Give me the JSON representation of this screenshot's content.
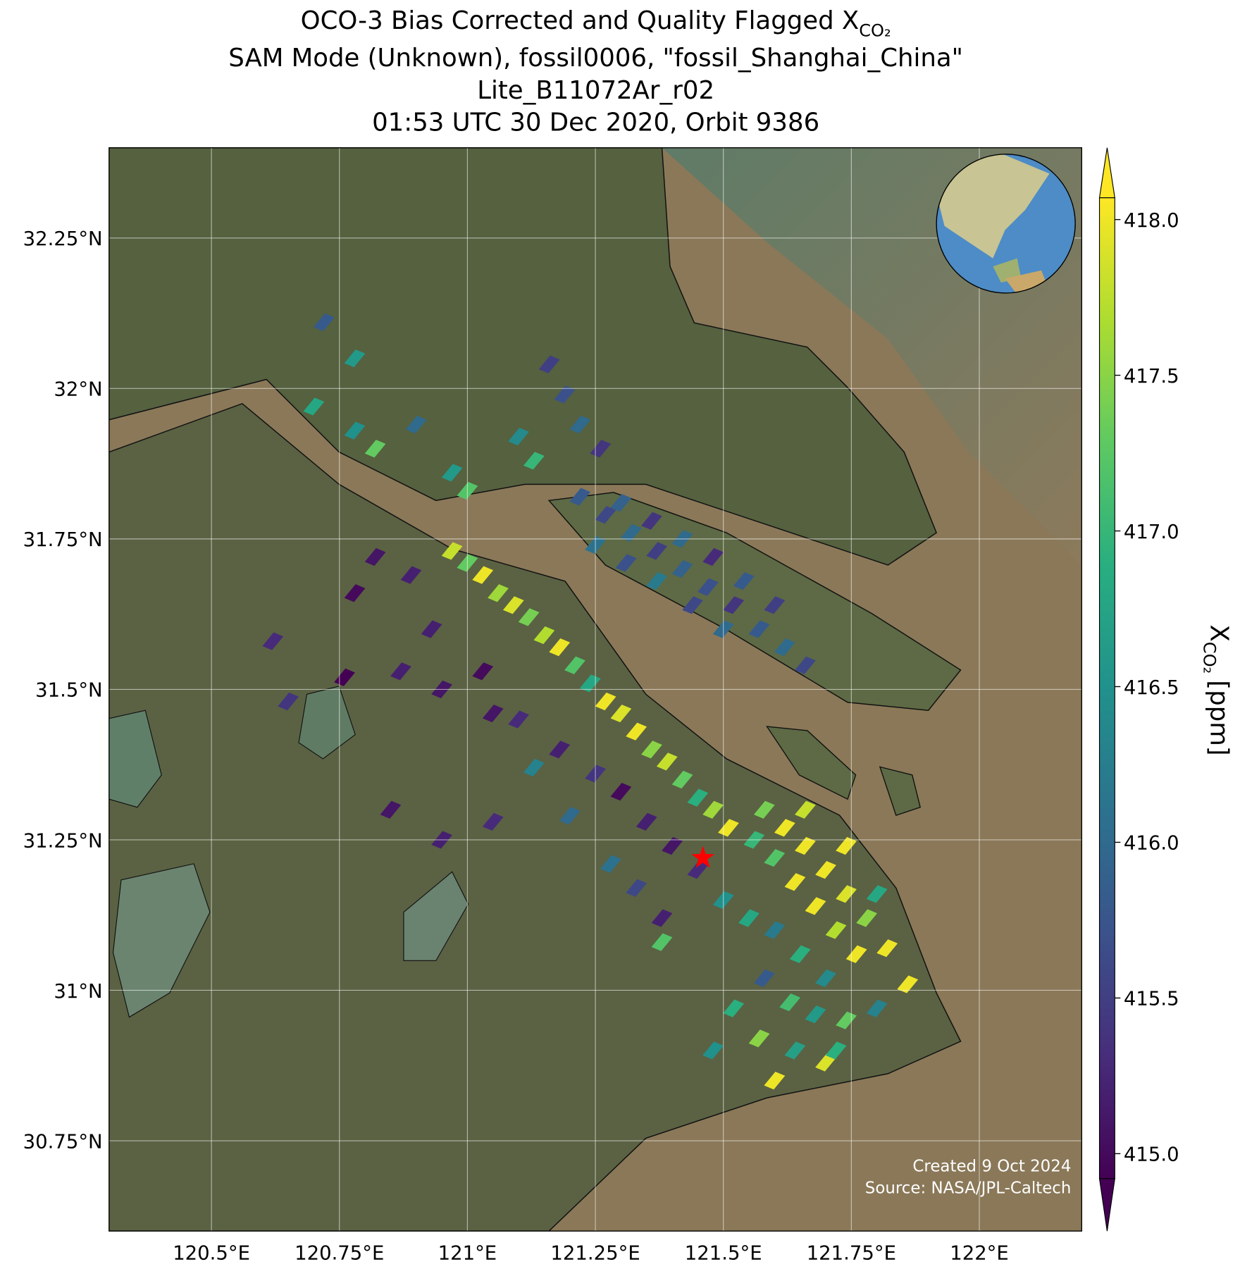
{
  "chart_data": {
    "type": "map",
    "title_line1": "OCO-3 Bias Corrected and Quality Flagged X",
    "title_sub": "CO₂",
    "title_line2": "SAM Mode (Unknown), fossil0006, \"fossil_Shanghai_China\"",
    "title_line3": "Lite_B11072Ar_r02",
    "title_line4": "01:53 UTC 30 Dec 2020, Orbit 9386",
    "xlim": [
      120.3,
      122.2
    ],
    "ylim": [
      30.6,
      32.4
    ],
    "xticks": [
      {
        "value": 120.5,
        "label": "120.5°E"
      },
      {
        "value": 120.75,
        "label": "120.75°E"
      },
      {
        "value": 121,
        "label": "121°E"
      },
      {
        "value": 121.25,
        "label": "121.25°E"
      },
      {
        "value": 121.5,
        "label": "121.5°E"
      },
      {
        "value": 121.75,
        "label": "121.75°E"
      },
      {
        "value": 122,
        "label": "122°E"
      }
    ],
    "yticks": [
      {
        "value": 30.75,
        "label": "30.75°N"
      },
      {
        "value": 31,
        "label": "31°N"
      },
      {
        "value": 31.25,
        "label": "31.25°N"
      },
      {
        "value": 31.5,
        "label": "31.5°N"
      },
      {
        "value": 31.75,
        "label": "31.75°N"
      },
      {
        "value": 32,
        "label": "32°N"
      },
      {
        "value": 32.25,
        "label": "32.25°N"
      }
    ],
    "grid": true,
    "colormap": "viridis",
    "clim": [
      414.92,
      418.07
    ],
    "cticks": [
      {
        "value": 415,
        "label": "415.0"
      },
      {
        "value": 415.5,
        "label": "415.5"
      },
      {
        "value": 416,
        "label": "416.0"
      },
      {
        "value": 416.5,
        "label": "416.5"
      },
      {
        "value": 417,
        "label": "417.0"
      },
      {
        "value": 417.5,
        "label": "417.5"
      },
      {
        "value": 418,
        "label": "418.0"
      }
    ],
    "colorbar_label": "X",
    "colorbar_label_sub": "CO₂",
    "colorbar_label_unit": "[ppm]",
    "target_lon": 121.46,
    "target_lat": 31.22,
    "target_color": "#ff0000",
    "credit_line1": "Created 9 Oct 2024",
    "credit_line2": "Source: NASA/JPL-Caltech",
    "lon": [
      120.97,
      121.0,
      121.03,
      121.06,
      121.09,
      121.12,
      121.15,
      121.18,
      121.21,
      121.24,
      121.27,
      121.3,
      121.33,
      121.36,
      121.39,
      121.42,
      121.45,
      121.48,
      121.51,
      121.58,
      121.62,
      121.66,
      121.7,
      121.74,
      121.78,
      121.82,
      121.86,
      121.6,
      121.64,
      121.68,
      121.72,
      121.76,
      121.56,
      121.66,
      121.74,
      121.8,
      121.22,
      121.27,
      121.32,
      121.37,
      121.42,
      121.47,
      121.52,
      121.57,
      121.62,
      121.66,
      121.3,
      121.36,
      121.42,
      121.48,
      121.54,
      121.6,
      121.25,
      121.31,
      121.37,
      121.44,
      121.5,
      121.16,
      121.19,
      121.22,
      121.26,
      121.1,
      121.13,
      120.97,
      121.0,
      120.9,
      120.78,
      120.82,
      120.7,
      120.72,
      120.78,
      120.82,
      120.89,
      120.78,
      120.93,
      121.03,
      120.95,
      120.87,
      120.76,
      120.62,
      120.65,
      121.05,
      121.1,
      121.18,
      121.25,
      121.3,
      121.35,
      121.4,
      121.45,
      121.13,
      121.2,
      121.28,
      121.33,
      121.38,
      120.85,
      120.95,
      121.05,
      121.5,
      121.55,
      121.6,
      121.65,
      121.7,
      121.58,
      121.63,
      121.68,
      121.74,
      121.8,
      121.52,
      121.57,
      121.64,
      121.7,
      121.6,
      121.48,
      121.38,
      121.72
    ],
    "lat": [
      31.73,
      31.71,
      31.69,
      31.66,
      31.64,
      31.62,
      31.59,
      31.57,
      31.54,
      31.51,
      31.48,
      31.46,
      31.43,
      31.4,
      31.38,
      31.35,
      31.32,
      31.3,
      31.27,
      31.3,
      31.27,
      31.24,
      31.2,
      31.16,
      31.12,
      31.07,
      31.01,
      31.22,
      31.18,
      31.14,
      31.1,
      31.06,
      31.25,
      31.3,
      31.24,
      31.16,
      31.82,
      31.79,
      31.76,
      31.73,
      31.7,
      31.67,
      31.64,
      31.6,
      31.57,
      31.54,
      31.81,
      31.78,
      31.75,
      31.72,
      31.68,
      31.64,
      31.74,
      31.71,
      31.68,
      31.64,
      31.6,
      32.04,
      31.99,
      31.94,
      31.9,
      31.92,
      31.88,
      31.86,
      31.83,
      31.94,
      31.93,
      31.9,
      31.97,
      32.11,
      32.05,
      31.72,
      31.69,
      31.66,
      31.6,
      31.53,
      31.5,
      31.53,
      31.52,
      31.58,
      31.48,
      31.46,
      31.45,
      31.4,
      31.36,
      31.33,
      31.28,
      31.24,
      31.2,
      31.37,
      31.29,
      31.21,
      31.17,
      31.12,
      31.3,
      31.25,
      31.28,
      31.15,
      31.12,
      31.1,
      31.06,
      31.02,
      31.02,
      30.98,
      30.96,
      30.95,
      30.97,
      30.97,
      30.92,
      30.9,
      30.88,
      30.85,
      30.9,
      31.08,
      30.9
    ],
    "values": [
      417.8,
      417.3,
      418.0,
      417.6,
      417.9,
      417.4,
      417.7,
      418.0,
      417.2,
      416.8,
      418.0,
      417.9,
      418.0,
      417.5,
      417.8,
      417.3,
      416.9,
      417.6,
      418.0,
      417.4,
      418.0,
      418.0,
      418.0,
      417.9,
      417.5,
      418.0,
      418.0,
      417.2,
      418.0,
      418.0,
      417.7,
      418.0,
      417.0,
      417.8,
      418.0,
      416.8,
      415.8,
      415.6,
      416.0,
      415.5,
      415.9,
      415.7,
      415.4,
      415.8,
      416.0,
      415.6,
      415.9,
      415.4,
      416.0,
      415.3,
      415.8,
      415.5,
      416.1,
      415.7,
      416.2,
      415.6,
      416.0,
      415.5,
      415.7,
      416.0,
      415.4,
      416.4,
      417.0,
      416.6,
      417.2,
      416.0,
      416.5,
      417.3,
      416.8,
      415.8,
      416.6,
      415.1,
      415.2,
      415.0,
      415.2,
      415.0,
      415.1,
      415.2,
      414.9,
      415.3,
      415.4,
      415.1,
      415.3,
      415.2,
      415.4,
      415.0,
      415.2,
      415.1,
      415.3,
      416.3,
      416.0,
      416.1,
      415.6,
      415.2,
      415.1,
      415.2,
      415.3,
      416.5,
      416.8,
      416.2,
      416.9,
      416.4,
      415.8,
      417.1,
      416.6,
      417.3,
      416.3,
      416.9,
      417.5,
      416.7,
      417.9,
      418.0,
      416.5,
      417.2,
      416.9
    ]
  }
}
